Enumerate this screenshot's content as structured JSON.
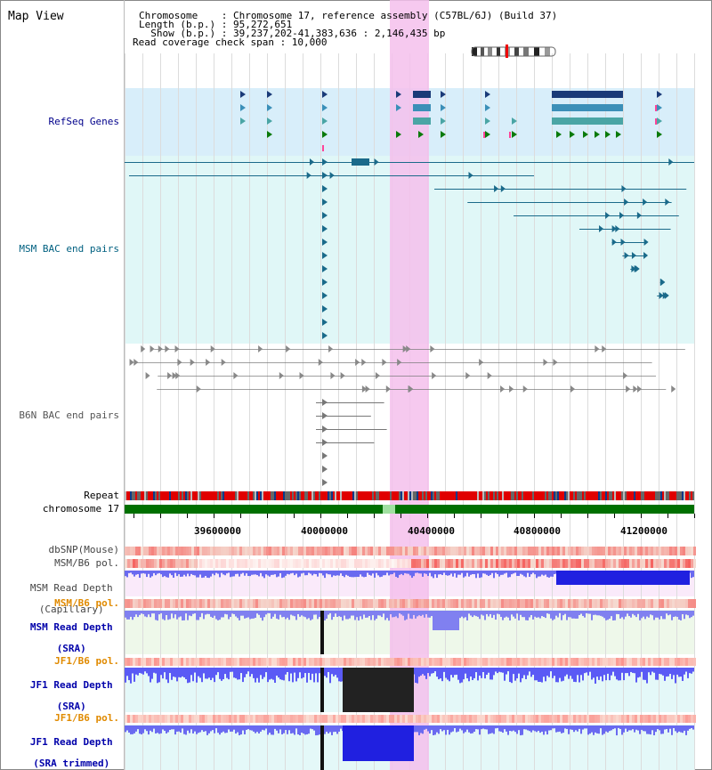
{
  "title": "Map View",
  "header": {
    "line1": "Chromosome    : Chromosome 17, reference assembly (C57BL/6J) (Build 37)",
    "line2": "Length (b.p.) : 95,272,651",
    "line3": "  Show (b.p.) : 39,237,202-41,383,636 : 2,146,435 bp",
    "line4": "Read coverage check span : 10,000"
  },
  "tracks": {
    "refseq": "RefSeq Genes",
    "msm_bac": "MSM BAC end pairs",
    "b6n_bac": "B6N BAC end pairs",
    "repeat": "Repeat",
    "chromosome": "chromosome 17"
  },
  "axis_ticks": [
    "39600000",
    "40000000",
    "40400000",
    "40800000",
    "41200000"
  ],
  "lower_tracks": {
    "dbsnp": "dbSNP(Mouse)",
    "msm_b6_pol_1": "MSM/B6 pol.",
    "msm_depth_cap_1": "MSM Read Depth",
    "msm_depth_cap_2": "(Capillary)",
    "msm_b6_pol_2": "MSM/B6 pol.",
    "msm_depth_sra_1": "MSM Read Depth",
    "msm_depth_sra_2": "(SRA)",
    "jf1_b6_pol_1": "JF1/B6 pol.",
    "jf1_depth_1": "JF1 Read Depth",
    "jf1_depth_2": "(SRA)",
    "jf1_b6_pol_2": "JF1/B6 pol.",
    "jf1_trim_1": "JF1 Read Depth",
    "jf1_trim_2": "(SRA trimmed)"
  },
  "colors": {
    "refseq_label": "#00008b",
    "msm_label": "#006080",
    "b6n_label": "#555555",
    "pol_label": "#e08a00",
    "depth_label": "#0000aa",
    "highlight": "#f5c0ec",
    "refseq_band": "#d8eefa",
    "msm_band": "#e0f7f7",
    "chrom_green": "#007000",
    "repeat_red": "#e00000"
  }
}
